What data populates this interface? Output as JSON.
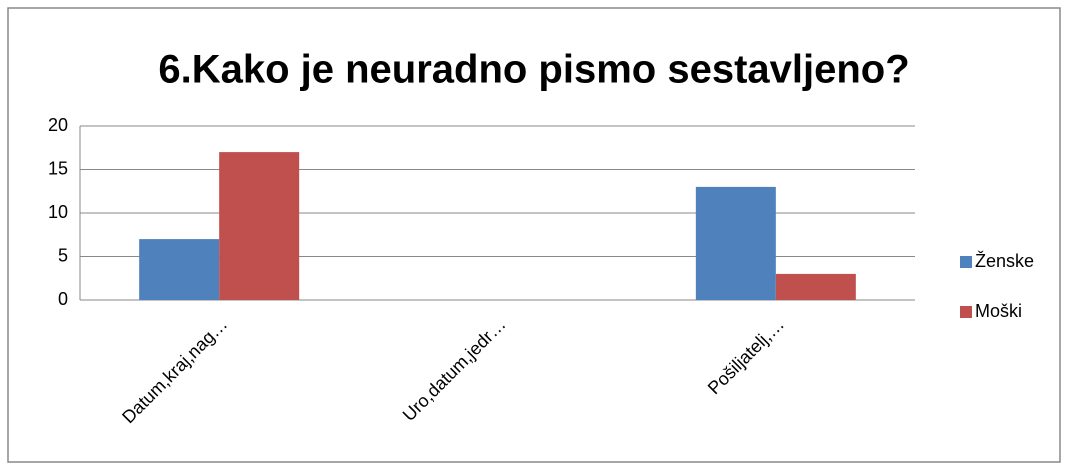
{
  "chart_data": {
    "type": "bar",
    "title": "6.Kako je neuradno pismo sestavljeno?",
    "categories": [
      "Datum,kraj,nag…",
      "Uro,datum,jedr…",
      "Pošiljatelj,…"
    ],
    "series": [
      {
        "name": "Ženske",
        "color": "#4f81bd",
        "values": [
          7,
          0,
          13
        ]
      },
      {
        "name": "Moški",
        "color": "#c0504d",
        "values": [
          17,
          0,
          3
        ]
      }
    ],
    "ylim": [
      0,
      20
    ],
    "yticks": [
      0,
      5,
      10,
      15,
      20
    ],
    "grid": true,
    "legend": "right"
  }
}
